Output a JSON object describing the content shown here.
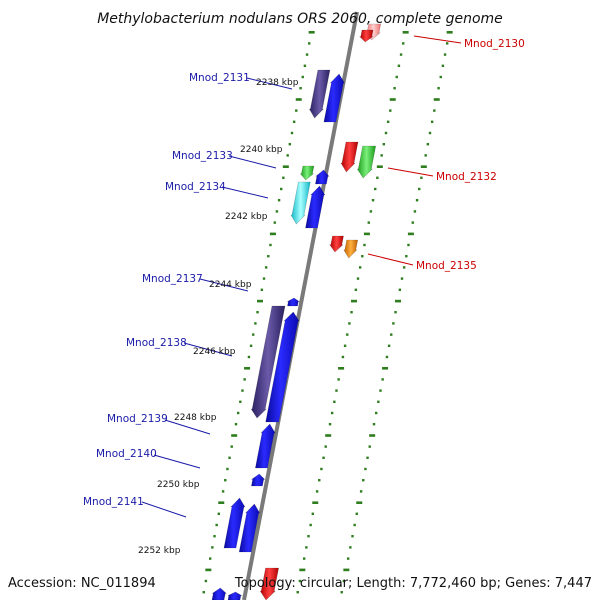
{
  "title": "Methylobacterium nodulans ORS 2060, complete genome",
  "accession": "Accession: NC_011894",
  "topology": "Topology: circular; Length: 7,772,460 bp; Genes: 7,447",
  "colors": {
    "backbone": "#7a7a7a",
    "ticks": "#2e7d1e",
    "left_label": "#1a1aa8",
    "right_label": "#cc0000",
    "blue_gene": "#1414f0",
    "purple_gene": "#4a3a8a",
    "green_gene": "#2fc02f",
    "cyan_gene": "#18e8e8",
    "red_gene": "#e81010",
    "orange_gene": "#f08c10",
    "pink_gene": "#f5a0a0"
  },
  "kbp_labels": [
    "2238 kbp",
    "2240 kbp",
    "2242 kbp",
    "2244 kbp",
    "2246 kbp",
    "2248 kbp",
    "2250 kbp",
    "2252 kbp"
  ],
  "left_genes": [
    "Mnod_2131",
    "Mnod_2133",
    "Mnod_2134",
    "Mnod_2137",
    "Mnod_2138",
    "Mnod_2139",
    "Mnod_2140",
    "Mnod_2141"
  ],
  "right_genes": [
    "Mnod_2130",
    "Mnod_2132",
    "Mnod_2135"
  ]
}
